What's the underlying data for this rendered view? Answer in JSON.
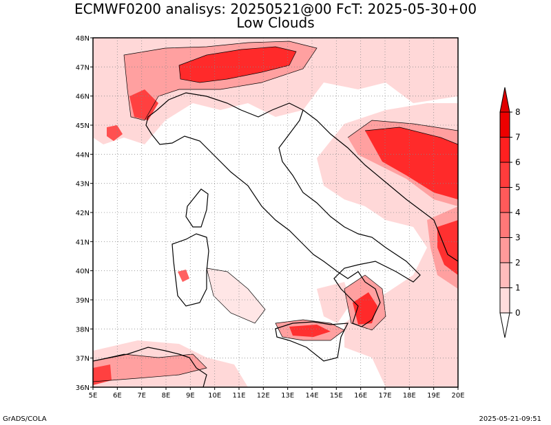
{
  "header": {
    "title_line1": "ECMWF0200 analisys: 20250521@00 FcT: 2025-05-30+00",
    "title_line2": "Low Clouds"
  },
  "footer": {
    "left": "GrADS/COLA",
    "right": "2025-05-21-09:51"
  },
  "map": {
    "lon_range": [
      5,
      20
    ],
    "lat_range": [
      36,
      48
    ],
    "lon_labels": [
      "5E",
      "6E",
      "7E",
      "8E",
      "9E",
      "10E",
      "11E",
      "12E",
      "13E",
      "14E",
      "15E",
      "16E",
      "17E",
      "18E",
      "19E",
      "20E"
    ],
    "lat_labels": [
      "36N",
      "37N",
      "38N",
      "39N",
      "40N",
      "41N",
      "42N",
      "43N",
      "44N",
      "45N",
      "46N",
      "47N",
      "48N"
    ],
    "grid": "dotted",
    "coastline_color": "#000000"
  },
  "colorbar": {
    "labels": [
      "0",
      "1",
      "2",
      "3",
      "4",
      "5",
      "6",
      "7",
      "8"
    ],
    "colors": [
      "#ffffff",
      "#ffdcdc",
      "#ffbcbc",
      "#ff9a9a",
      "#ff7878",
      "#ff5a5a",
      "#ff3c3c",
      "#ff2020",
      "#ee0000"
    ],
    "extends": "both"
  }
}
